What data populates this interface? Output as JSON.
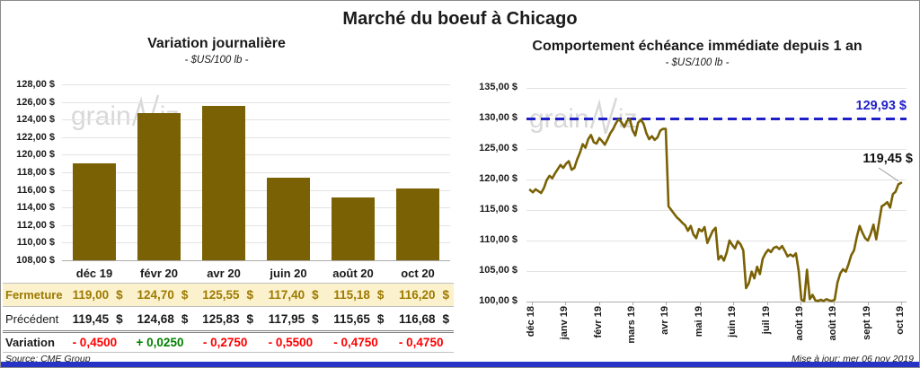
{
  "page": {
    "title": "Marché du boeuf à Chicago"
  },
  "currency": "$",
  "watermark": {
    "prefix": "grain",
    "suffix": "iz"
  },
  "colors": {
    "bar_gold": "#7a6104",
    "line_gold": "#7a6104",
    "fermeture_bg": "#fcf1cd",
    "fermeture_text": "#9c7a00",
    "negative_red": "#ff0000",
    "positive_green": "#008000",
    "reference_blue": "#1f1fc8",
    "bottom_bar_blue": "#2733c4",
    "watermark_gray": "#d4d4d4"
  },
  "left": {
    "title": "Variation journalière",
    "subtitle": "- $US/100 lb -",
    "source": "Source: CME Group",
    "table": {
      "header": [
        "déc 19",
        "févr 20",
        "avr 20",
        "juin 20",
        "août 20",
        "oct 20"
      ],
      "fermeture": {
        "label": "Fermeture",
        "values": [
          "119,00",
          "124,70",
          "125,55",
          "117,40",
          "115,18",
          "116,20"
        ]
      },
      "precedent": {
        "label": "Précédent",
        "values": [
          "119,45",
          "124,68",
          "125,83",
          "117,95",
          "115,65",
          "116,68"
        ]
      },
      "variation": {
        "label": "Variation",
        "values": [
          "- 0,4500",
          "+ 0,0250",
          "- 0,2750",
          "- 0,5500",
          "- 0,4750",
          "- 0,4750"
        ],
        "signs": [
          "neg",
          "pos",
          "neg",
          "neg",
          "neg",
          "neg"
        ]
      }
    }
  },
  "right": {
    "title": "Comportement échéance immédiate depuis 1 an",
    "subtitle": "- $US/100 lb -",
    "updated": "Mise à jour: mer 06 nov 2019",
    "reference_label": "129,93 $",
    "last_label": "119,45 $"
  },
  "chart_data": [
    {
      "type": "bar",
      "title": "Variation journalière",
      "subtitle": "- $US/100 lb -",
      "categories": [
        "déc 19",
        "févr 20",
        "avr 20",
        "juin 20",
        "août 20",
        "oct 20"
      ],
      "values": [
        119.0,
        124.7,
        125.55,
        117.4,
        115.18,
        116.2
      ],
      "fermeture": [
        119.0,
        124.7,
        125.55,
        117.4,
        115.18,
        116.2
      ],
      "precedent": [
        119.45,
        124.68,
        125.83,
        117.95,
        115.65,
        116.68
      ],
      "variation": [
        -0.45,
        0.025,
        -0.275,
        -0.55,
        -0.475,
        -0.475
      ],
      "ylabel": "$US/100 lb",
      "ylim": [
        108,
        128
      ],
      "ytick_step": 2,
      "ytick_labels": [
        "128,00 $",
        "126,00 $",
        "124,00 $",
        "122,00 $",
        "120,00 $",
        "118,00 $",
        "116,00 $",
        "114,00 $",
        "112,00 $",
        "110,00 $",
        "108,00 $"
      ],
      "grid": true,
      "legend": "none"
    },
    {
      "type": "line",
      "title": "Comportement échéance immédiate depuis 1 an",
      "subtitle": "- $US/100 lb -",
      "x_labels": [
        "déc 18",
        "janv 19",
        "févr 19",
        "mars 19",
        "avr 19",
        "mai 19",
        "juin 19",
        "juil 19",
        "août 19",
        "août 19",
        "sept 19",
        "oct 19"
      ],
      "ylabel": "$US/100 lb",
      "ylim": [
        100,
        135
      ],
      "ytick_step": 5,
      "ytick_labels": [
        "135,00 $",
        "130,00 $",
        "125,00 $",
        "120,00 $",
        "115,00 $",
        "110,00 $",
        "105,00 $",
        "100,00 $"
      ],
      "reference_value": 129.93,
      "last_value": 119.45,
      "grid": true,
      "legend": "none",
      "values": [
        118.3,
        117.9,
        118.4,
        118.1,
        117.8,
        118.6,
        119.9,
        120.6,
        120.2,
        121.0,
        121.7,
        122.4,
        121.9,
        122.6,
        123.0,
        121.6,
        121.9,
        123.3,
        124.4,
        125.8,
        125.2,
        126.6,
        127.3,
        126.1,
        125.9,
        126.8,
        126.3,
        125.7,
        126.6,
        127.6,
        128.3,
        129.2,
        129.9,
        129.4,
        128.6,
        129.6,
        129.9,
        128.1,
        127.2,
        129.3,
        129.8,
        129.1,
        127.6,
        126.6,
        127.1,
        126.5,
        126.9,
        128.0,
        128.3,
        128.3,
        115.6,
        115.0,
        114.4,
        113.8,
        113.4,
        112.9,
        112.5,
        111.6,
        112.4,
        111.0,
        110.4,
        111.9,
        111.5,
        112.2,
        109.6,
        110.6,
        111.6,
        112.1,
        106.9,
        107.5,
        106.7,
        108.0,
        110.0,
        109.3,
        108.7,
        109.9,
        109.4,
        108.4,
        102.2,
        103.0,
        104.9,
        103.8,
        105.7,
        104.5,
        107.0,
        107.9,
        108.5,
        108.1,
        108.8,
        109.0,
        108.6,
        109.1,
        108.3,
        107.4,
        107.7,
        107.4,
        107.9,
        105.0,
        100.3,
        100.1,
        105.2,
        100.4,
        101.1,
        100.2,
        100.1,
        100.3,
        100.1,
        100.4,
        100.2,
        100.1,
        100.3,
        103.1,
        104.6,
        105.3,
        104.9,
        106.1,
        107.6,
        108.4,
        110.6,
        112.4,
        111.3,
        110.4,
        110.0,
        111.1,
        112.6,
        110.2,
        112.9,
        115.6,
        115.9,
        116.3,
        115.4,
        117.6,
        118.0,
        119.2,
        119.45
      ]
    }
  ]
}
